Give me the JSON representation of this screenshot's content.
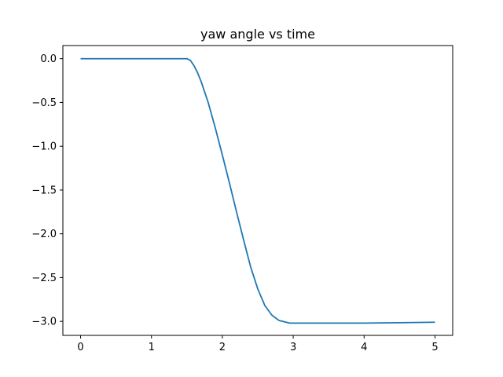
{
  "chart_data": {
    "type": "line",
    "title": "yaw angle vs time",
    "xlabel": "",
    "ylabel": "",
    "xlim": [
      -0.25,
      5.25
    ],
    "ylim": [
      -3.16,
      0.15
    ],
    "x_ticks": [
      0,
      1,
      2,
      3,
      4,
      5
    ],
    "x_tick_labels": [
      "0",
      "1",
      "2",
      "3",
      "4",
      "5"
    ],
    "y_ticks": [
      0.0,
      -0.5,
      -1.0,
      -1.5,
      -2.0,
      -2.5,
      -3.0
    ],
    "y_tick_labels": [
      "0.0",
      "−0.5",
      "−1.0",
      "−1.5",
      "−2.0",
      "−2.5",
      "−3.0"
    ],
    "grid": false,
    "series": [
      {
        "color": "#1f77b4",
        "x": [
          0,
          0.5,
          1.0,
          1.4,
          1.5,
          1.55,
          1.6,
          1.65,
          1.7,
          1.8,
          1.9,
          2.0,
          2.1,
          2.2,
          2.3,
          2.4,
          2.5,
          2.6,
          2.7,
          2.8,
          2.9,
          2.95,
          3.0,
          3.05,
          3.1,
          3.5,
          4.0,
          4.5,
          5.0
        ],
        "y": [
          0.0,
          0.0,
          0.0,
          0.0,
          0.0,
          -0.02,
          -0.08,
          -0.16,
          -0.26,
          -0.5,
          -0.79,
          -1.1,
          -1.42,
          -1.75,
          -2.07,
          -2.38,
          -2.63,
          -2.82,
          -2.93,
          -2.99,
          -3.01,
          -3.02,
          -3.02,
          -3.02,
          -3.02,
          -3.02,
          -3.02,
          -3.015,
          -3.01
        ]
      }
    ]
  }
}
